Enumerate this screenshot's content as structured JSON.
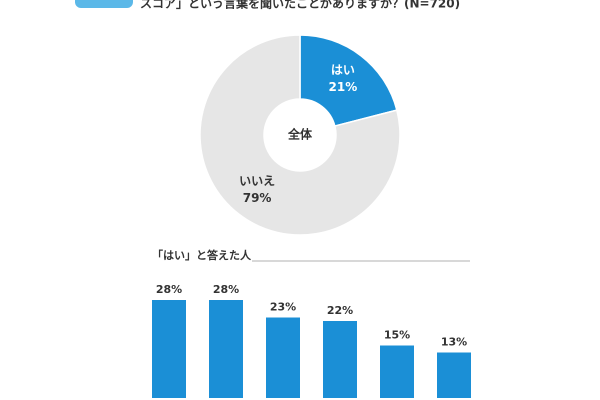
{
  "chart_data": [
    {
      "type": "pie",
      "title": "スコア」という言葉を聞いたことがありますか？(N=720)",
      "center_label": "全体",
      "categories": [
        "はい",
        "いいえ"
      ],
      "values": [
        21,
        79
      ],
      "value_labels": [
        "21%",
        "79%"
      ],
      "colors": [
        "#1b8fd6",
        "#e6e6e6"
      ],
      "label_colors": [
        "#ffffff",
        "#333333"
      ]
    },
    {
      "type": "bar",
      "title": "「はい」と答えた人",
      "categories": [
        null,
        null,
        null,
        null,
        null,
        null
      ],
      "values": [
        28,
        28,
        23,
        22,
        15,
        13
      ],
      "value_labels": [
        "28%",
        "28%",
        "23%",
        "22%",
        "15%",
        "13%"
      ],
      "color": "#1b8fd6"
    }
  ]
}
